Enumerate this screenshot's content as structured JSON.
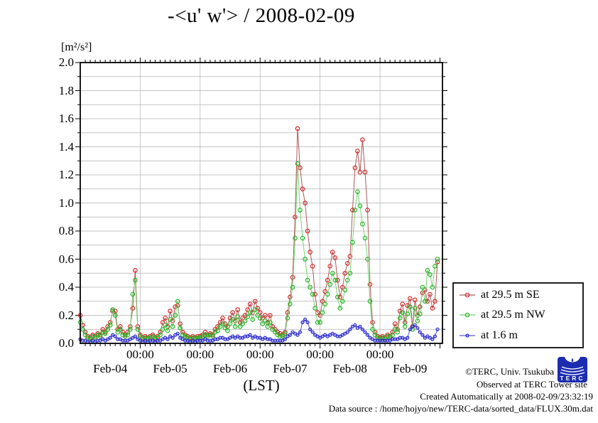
{
  "page": {
    "background": "#ffffff"
  },
  "chart_data": {
    "type": "line",
    "title": "-<u' w'> / 2008-02-09",
    "unit_label": "[m²/s²]",
    "xlabel": "(LST)",
    "ylim": [
      0.0,
      2.0
    ],
    "ytick_step": 0.2,
    "ytick_minor_step": 0.1,
    "xlim_hours": [
      0,
      145
    ],
    "x_time_tick_label": "00:00",
    "x_day_labels": [
      "Feb-04",
      "Feb-05",
      "Feb-06",
      "Feb-07",
      "Feb-08",
      "Feb-09"
    ],
    "grid": true,
    "grid_color": "#b0b0b0",
    "legend_position": "outside-right-bottom",
    "series": [
      {
        "label": "at 29.5 m SE",
        "marker_color": "#d42a2a",
        "line_color": "#b15858",
        "marker_radius": 2.7,
        "x_start_hour": 0,
        "x_step_hours": 1,
        "values": [
          0.2,
          0.13,
          0.08,
          0.05,
          0.04,
          0.06,
          0.05,
          0.07,
          0.06,
          0.1,
          0.08,
          0.12,
          0.15,
          0.23,
          0.23,
          0.1,
          0.12,
          0.08,
          0.06,
          0.08,
          0.12,
          0.25,
          0.52,
          0.12,
          0.06,
          0.04,
          0.05,
          0.04,
          0.05,
          0.06,
          0.04,
          0.05,
          0.08,
          0.15,
          0.18,
          0.12,
          0.23,
          0.16,
          0.26,
          0.27,
          0.14,
          0.08,
          0.06,
          0.05,
          0.04,
          0.05,
          0.04,
          0.05,
          0.05,
          0.06,
          0.08,
          0.06,
          0.07,
          0.06,
          0.1,
          0.12,
          0.15,
          0.18,
          0.14,
          0.12,
          0.18,
          0.22,
          0.16,
          0.24,
          0.15,
          0.18,
          0.2,
          0.24,
          0.28,
          0.22,
          0.3,
          0.25,
          0.22,
          0.18,
          0.2,
          0.15,
          0.2,
          0.12,
          0.1,
          0.08,
          0.07,
          0.06,
          0.08,
          0.22,
          0.33,
          0.47,
          0.9,
          1.53,
          1.25,
          1.1,
          1.0,
          0.8,
          0.65,
          0.55,
          0.35,
          0.22,
          0.2,
          0.3,
          0.37,
          0.45,
          0.55,
          0.65,
          0.61,
          0.45,
          0.33,
          0.4,
          0.5,
          0.57,
          0.62,
          0.95,
          1.25,
          1.37,
          1.22,
          1.45,
          1.22,
          0.95,
          0.42,
          0.15,
          0.08,
          0.05,
          0.04,
          0.05,
          0.04,
          0.06,
          0.05,
          0.08,
          0.14,
          0.1,
          0.23,
          0.28,
          0.15,
          0.27,
          0.32,
          0.12,
          0.31,
          0.2,
          0.26,
          0.36,
          0.38,
          0.3,
          0.35,
          0.25,
          0.3,
          0.58
        ]
      },
      {
        "label": "at 29.5 m NW",
        "marker_color": "#28b428",
        "line_color": "#74d474",
        "marker_radius": 2.7,
        "x_start_hour": 0,
        "x_step_hours": 1,
        "values": [
          0.15,
          0.1,
          0.06,
          0.04,
          0.03,
          0.05,
          0.04,
          0.06,
          0.05,
          0.08,
          0.07,
          0.1,
          0.13,
          0.24,
          0.2,
          0.08,
          0.1,
          0.06,
          0.05,
          0.06,
          0.1,
          0.35,
          0.45,
          0.1,
          0.05,
          0.03,
          0.04,
          0.03,
          0.04,
          0.05,
          0.03,
          0.04,
          0.06,
          0.1,
          0.13,
          0.09,
          0.17,
          0.12,
          0.2,
          0.3,
          0.11,
          0.06,
          0.05,
          0.04,
          0.03,
          0.04,
          0.03,
          0.04,
          0.04,
          0.05,
          0.06,
          0.05,
          0.06,
          0.05,
          0.08,
          0.09,
          0.12,
          0.14,
          0.11,
          0.09,
          0.14,
          0.17,
          0.12,
          0.19,
          0.12,
          0.14,
          0.16,
          0.19,
          0.22,
          0.17,
          0.24,
          0.2,
          0.18,
          0.14,
          0.16,
          0.12,
          0.15,
          0.1,
          0.08,
          0.06,
          0.05,
          0.05,
          0.07,
          0.18,
          0.28,
          0.4,
          0.75,
          1.28,
          0.95,
          0.75,
          0.6,
          0.45,
          0.4,
          0.35,
          0.25,
          0.15,
          0.15,
          0.22,
          0.28,
          0.35,
          0.42,
          0.5,
          0.45,
          0.33,
          0.25,
          0.3,
          0.38,
          0.45,
          0.5,
          0.72,
          0.95,
          1.08,
          0.98,
          0.85,
          0.75,
          0.6,
          0.3,
          0.1,
          0.06,
          0.04,
          0.03,
          0.04,
          0.03,
          0.05,
          0.04,
          0.06,
          0.1,
          0.08,
          0.18,
          0.22,
          0.12,
          0.21,
          0.26,
          0.1,
          0.25,
          0.16,
          0.21,
          0.4,
          0.3,
          0.52,
          0.49,
          0.4,
          0.55,
          0.6
        ]
      },
      {
        "label": "at 1.6 m",
        "marker_color": "#2828cc",
        "line_color": "#5a5ae0",
        "marker_radius": 2.0,
        "x_start_hour": 0,
        "x_step_hours": 1,
        "values": [
          0.03,
          0.02,
          0.02,
          0.01,
          0.01,
          0.02,
          0.01,
          0.02,
          0.02,
          0.03,
          0.02,
          0.03,
          0.04,
          0.06,
          0.05,
          0.03,
          0.03,
          0.02,
          0.02,
          0.02,
          0.03,
          0.04,
          0.05,
          0.03,
          0.02,
          0.01,
          0.02,
          0.01,
          0.02,
          0.02,
          0.01,
          0.02,
          0.02,
          0.03,
          0.04,
          0.03,
          0.05,
          0.04,
          0.06,
          0.07,
          0.04,
          0.03,
          0.02,
          0.02,
          0.01,
          0.02,
          0.01,
          0.02,
          0.02,
          0.02,
          0.03,
          0.02,
          0.02,
          0.02,
          0.03,
          0.03,
          0.04,
          0.04,
          0.03,
          0.03,
          0.04,
          0.05,
          0.04,
          0.05,
          0.04,
          0.04,
          0.05,
          0.05,
          0.06,
          0.04,
          0.05,
          0.04,
          0.04,
          0.03,
          0.04,
          0.03,
          0.03,
          0.02,
          0.02,
          0.02,
          0.02,
          0.02,
          0.03,
          0.05,
          0.06,
          0.08,
          0.07,
          0.06,
          0.08,
          0.15,
          0.17,
          0.15,
          0.1,
          0.08,
          0.06,
          0.05,
          0.04,
          0.05,
          0.06,
          0.05,
          0.06,
          0.07,
          0.06,
          0.05,
          0.05,
          0.06,
          0.07,
          0.08,
          0.1,
          0.12,
          0.13,
          0.11,
          0.12,
          0.1,
          0.08,
          0.06,
          0.04,
          0.03,
          0.02,
          0.02,
          0.02,
          0.02,
          0.02,
          0.02,
          0.02,
          0.03,
          0.03,
          0.03,
          0.04,
          0.04,
          0.03,
          0.04,
          0.1,
          0.12,
          0.13,
          0.11,
          0.08,
          0.06,
          0.04,
          0.05,
          0.04,
          0.03,
          0.05,
          0.1
        ]
      }
    ]
  },
  "footer": {
    "line1": "©TERC, Univ. Tsukuba",
    "line2": "Observed at TERC Tower site",
    "line3": "Created Automatically at 2008-02-09/23:32:19",
    "line4": "Data source : /home/hojyo/new/TERC-data/sorted_data/FLUX.30m.dat",
    "logo_text": "TERC"
  }
}
